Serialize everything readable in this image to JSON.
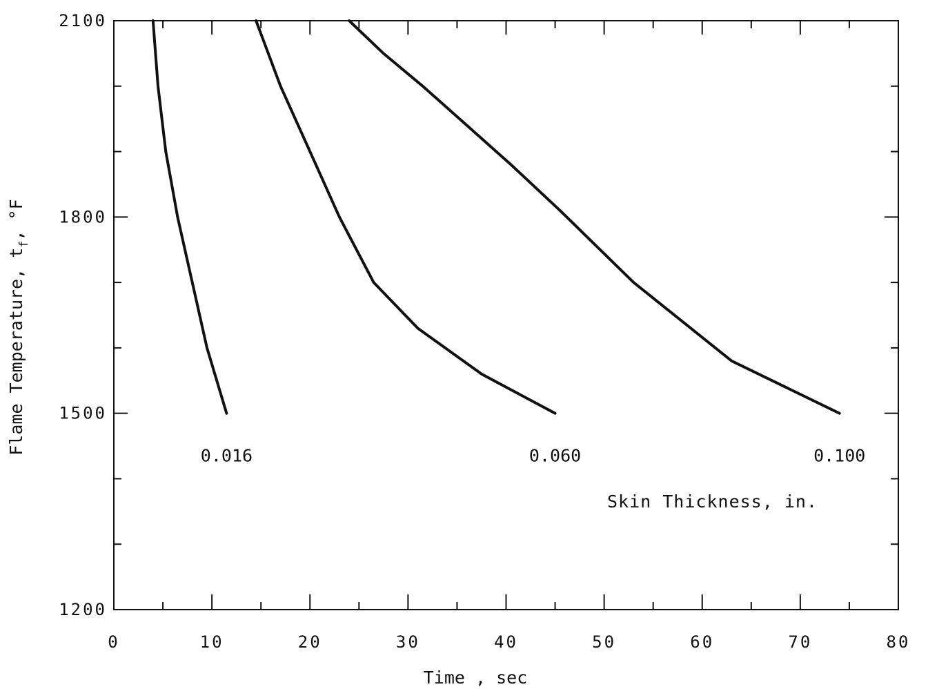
{
  "chart_data": {
    "type": "line",
    "title": "",
    "xlabel": "Time , sec",
    "ylabel": "Flame Temperature, t",
    "ylabel_subscript": "f",
    "ylabel_unit": ", °F",
    "xlim": [
      0,
      80
    ],
    "ylim": [
      1200,
      2100
    ],
    "x_ticks": [
      0,
      10,
      20,
      30,
      40,
      50,
      60,
      70,
      80
    ],
    "x_tick_labels": [
      "0",
      "10",
      "20",
      "30",
      "40",
      "50",
      "60",
      "70",
      "80"
    ],
    "y_ticks": [
      1200,
      1500,
      1800,
      2100
    ],
    "y_tick_labels": [
      "1200",
      "1500",
      "1800",
      "2100"
    ],
    "grid": false,
    "legend_note": "Skin Thickness, in.",
    "series": [
      {
        "name": "0.016",
        "x": [
          4.0,
          4.5,
          5.3,
          6.5,
          8.0,
          9.5,
          11.5
        ],
        "y": [
          2100,
          2000,
          1900,
          1800,
          1700,
          1600,
          1500
        ]
      },
      {
        "name": "0.060",
        "x": [
          14.5,
          17.0,
          20.0,
          23.0,
          26.5,
          31.0,
          37.5,
          45.0
        ],
        "y": [
          2100,
          2000,
          1900,
          1800,
          1700,
          1630,
          1560,
          1500
        ]
      },
      {
        "name": "0.100",
        "x": [
          24.0,
          27.5,
          31.5,
          36.0,
          40.5,
          45.5,
          53.0,
          63.0,
          74.0
        ],
        "y": [
          2100,
          2050,
          2000,
          1940,
          1880,
          1810,
          1700,
          1580,
          1500
        ]
      }
    ]
  }
}
